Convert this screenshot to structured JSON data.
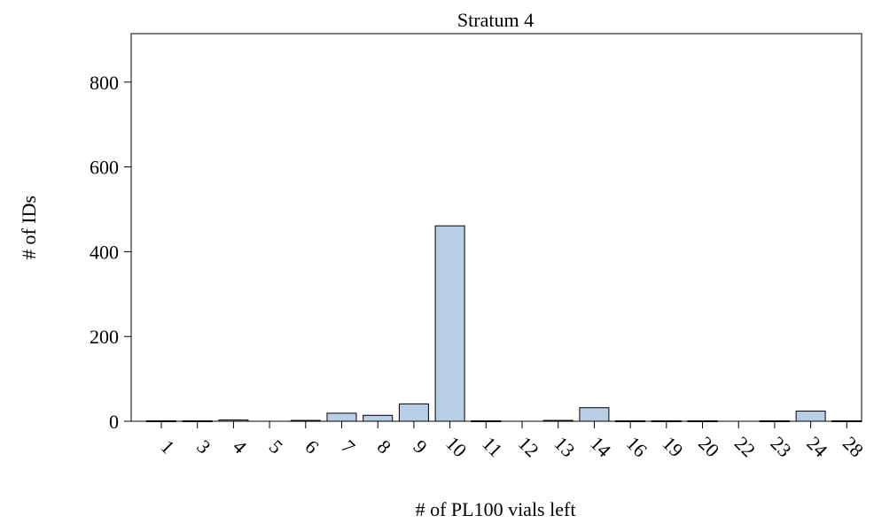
{
  "chart_data": {
    "type": "bar",
    "title": "Stratum 4",
    "xlabel": "# of PL100 vials left",
    "ylabel": "# of IDs",
    "categories": [
      "1",
      "3",
      "4",
      "5",
      "6",
      "7",
      "8",
      "9",
      "10",
      "11",
      "12",
      "13",
      "14",
      "16",
      "19",
      "20",
      "22",
      "23",
      "24",
      "28"
    ],
    "values": [
      1,
      1,
      3,
      0,
      2,
      19,
      14,
      41,
      461,
      1,
      0,
      2,
      32,
      1,
      1,
      1,
      0,
      1,
      24,
      1
    ],
    "ylim": [
      0,
      910
    ],
    "yticks": [
      0,
      200,
      400,
      600,
      800
    ],
    "grid": false,
    "bar_color": "#b9cde6",
    "bar_edge_color": "#000000",
    "xtick_rotation_deg": 45
  }
}
